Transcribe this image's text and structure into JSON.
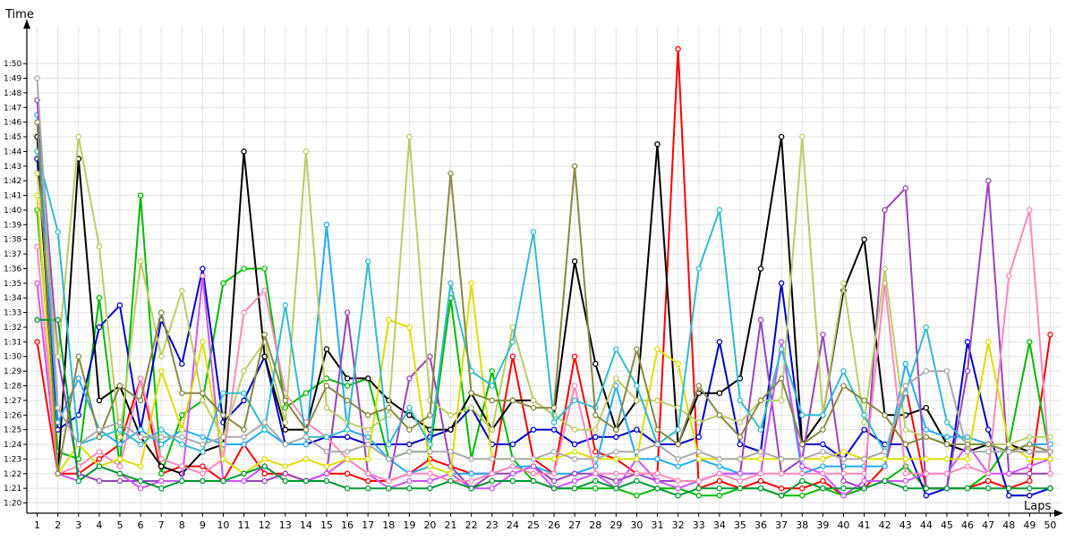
{
  "chart_data": {
    "type": "line",
    "title": "",
    "xlabel": "Laps",
    "ylabel": "Time",
    "x": [
      1,
      2,
      3,
      4,
      5,
      6,
      7,
      8,
      9,
      10,
      11,
      12,
      13,
      14,
      15,
      16,
      17,
      18,
      19,
      20,
      21,
      22,
      23,
      24,
      25,
      26,
      27,
      28,
      29,
      30,
      31,
      32,
      33,
      34,
      35,
      36,
      37,
      38,
      39,
      40,
      41,
      42,
      43,
      44,
      45,
      46,
      47,
      48,
      49,
      50
    ],
    "y_ticks": [
      "1:20",
      "1:21",
      "1:22",
      "1:23",
      "1:24",
      "1:25",
      "1:26",
      "1:27",
      "1:28",
      "1:29",
      "1:30",
      "1:31",
      "1:32",
      "1:33",
      "1:34",
      "1:35",
      "1:36",
      "1:37",
      "1:38",
      "1:39",
      "1:40",
      "1:41",
      "1:42",
      "1:43",
      "1:44",
      "1:45",
      "1:46",
      "1:47",
      "1:48",
      "1:49",
      "1:50"
    ],
    "ylim": [
      "1:19.3",
      "1:53"
    ],
    "xlim": [
      0.5,
      50.5
    ],
    "grid": true,
    "legend": "none",
    "series": [
      {
        "color": "#ff0000",
        "values": [
          "1:31.0",
          "1:22.0",
          "1:22.0",
          "1:23.0",
          "1:24.0",
          "1:28.5",
          "1:22.0",
          "1:22.5",
          "1:22.5",
          "1:21.5",
          "1:24.0",
          "1:22.0",
          "1:22.0",
          "1:21.5",
          "1:22.0",
          "1:22.0",
          "1:21.5",
          "1:21.5",
          "1:22.0",
          "1:23.0",
          "1:22.5",
          "1:22.0",
          "1:22.0",
          "1:30.0",
          "1:23.0",
          "1:22.0",
          "1:30.0",
          "1:23.5",
          "1:23.0",
          "1:22.0",
          "1:22.0",
          "1:51.0",
          "1:21.0",
          "1:21.5",
          "1:21.0",
          "1:21.5",
          "1:21.0",
          "1:21.0",
          "1:21.5",
          "1:20.5",
          "1:21.0",
          "1:22.5",
          "1:28.0",
          "1:21.0",
          "1:21.0",
          "1:21.0",
          "1:21.5",
          "1:21.0",
          "1:21.5",
          "1:31.5"
        ]
      },
      {
        "color": "#00bb00",
        "values": [
          "1:40.0",
          "1:23.5",
          "1:23.0",
          "1:34.0",
          "1:22.5",
          "1:41.0",
          "1:22.0",
          "1:26.0",
          "1:27.0",
          "1:35.0",
          "1:36.0",
          "1:36.0",
          "1:26.5",
          "1:27.5",
          "1:28.5",
          "1:28.0",
          "1:28.5",
          "1:23.0",
          "1:23.5",
          "1:23.5",
          "1:34.0",
          "1:23.0",
          "1:29.0",
          "1:23.0",
          "1:21.5",
          "1:21.0",
          "1:21.0",
          "1:21.0",
          "1:21.0",
          "1:20.5",
          "1:21.0",
          "1:21.0",
          "1:20.5",
          "1:20.5",
          "1:21.0",
          "1:21.0",
          "1:20.5",
          "1:20.5",
          "1:21.0",
          "1:20.5",
          "1:21.0",
          "1:21.5",
          "1:22.5",
          "1:21.0",
          "1:21.0",
          "1:21.0",
          "1:22.0",
          "1:24.0",
          "1:31.0",
          "1:23.0"
        ]
      },
      {
        "color": "#0000cc",
        "values": [
          "1:43.5",
          "1:25.0",
          "1:26.0",
          "1:32.0",
          "1:33.5",
          "1:25.0",
          "1:32.5",
          "1:29.5",
          "1:36.0",
          "1:25.5",
          "1:27.0",
          "1:30.0",
          "1:24.0",
          "1:24.0",
          "1:24.5",
          "1:24.5",
          "1:24.0",
          "1:24.0",
          "1:24.0",
          "1:24.5",
          "1:25.0",
          "1:26.5",
          "1:24.0",
          "1:24.0",
          "1:25.0",
          "1:25.0",
          "1:24.0",
          "1:24.5",
          "1:24.5",
          "1:25.0",
          "1:24.0",
          "1:24.0",
          "1:24.5",
          "1:31.0",
          "1:24.0",
          "1:23.5",
          "1:35.0",
          "1:24.0",
          "1:24.0",
          "1:23.0",
          "1:25.0",
          "1:24.0",
          "1:24.0",
          "1:20.5",
          "1:21.0",
          "1:31.0",
          "1:25.0",
          "1:20.5",
          "1:20.5",
          "1:21.0"
        ]
      },
      {
        "color": "#000000",
        "values": [
          "1:45.0",
          "1:22.0",
          "1:43.5",
          "1:27.0",
          "1:28.0",
          "1:24.5",
          "1:22.5",
          "1:22.0",
          "1:23.5",
          "1:24.0",
          "1:44.0",
          "1:30.0",
          "1:25.0",
          "1:25.0",
          "1:30.5",
          "1:28.5",
          "1:28.5",
          "1:27.0",
          "1:26.0",
          "1:25.0",
          "1:25.0",
          "1:27.5",
          "1:25.0",
          "1:27.0",
          "1:27.0",
          "1:26.0",
          "1:36.5",
          "1:29.5",
          "1:25.0",
          "1:27.0",
          "1:44.5",
          "1:24.0",
          "1:27.5",
          "1:27.5",
          "1:28.5",
          "1:36.0",
          "1:45.0",
          "1:24.0",
          "1:26.0",
          "1:34.5",
          "1:38.0",
          "1:26.0",
          "1:26.0",
          "1:26.5",
          "1:24.0",
          "1:23.5",
          "1:24.0",
          "1:24.0",
          "1:23.5",
          "1:23.5"
        ]
      },
      {
        "color": "#22aaff",
        "values": [
          "1:46.5",
          "1:25.5",
          "1:28.5",
          "1:25.0",
          "1:24.0",
          "1:25.0",
          "1:24.0",
          "1:25.0",
          "1:24.5",
          "1:24.0",
          "1:24.0",
          "1:25.0",
          "1:24.0",
          "1:24.0",
          "1:39.0",
          "1:25.0",
          "1:24.5",
          "1:23.0",
          "1:22.0",
          "1:22.5",
          "1:22.0",
          "1:22.0",
          "1:22.0",
          "1:22.5",
          "1:22.5",
          "1:22.0",
          "1:22.0",
          "1:22.5",
          "1:28.0",
          "1:23.0",
          "1:23.0",
          "1:22.5",
          "1:23.0",
          "1:22.5",
          "1:22.0",
          "1:22.0",
          "1:31.0",
          "1:22.0",
          "1:22.5",
          "1:22.5",
          "1:22.5",
          "1:22.5",
          "1:29.5",
          "1:25.0",
          "1:24.5",
          "1:24.5",
          "1:24.0",
          "1:23.5",
          "1:24.0",
          "1:24.0"
        ]
      },
      {
        "color": "#9944bb",
        "values": [
          "1:47.5",
          "1:30.0",
          "1:22.0",
          "1:21.5",
          "1:21.5",
          "1:21.5",
          "1:21.5",
          "1:21.5",
          "1:21.5",
          "1:21.5",
          "1:21.5",
          "1:21.5",
          "1:22.0",
          "1:21.5",
          "1:22.0",
          "1:33.0",
          "1:22.0",
          "1:21.5",
          "1:28.5",
          "1:30.0",
          "1:22.5",
          "1:21.0",
          "1:22.0",
          "1:22.0",
          "1:22.5",
          "1:21.5",
          "1:22.0",
          "1:22.0",
          "1:21.5",
          "1:22.0",
          "1:21.5",
          "1:21.5",
          "1:21.5",
          "1:22.0",
          "1:22.0",
          "1:32.5",
          "1:22.0",
          "1:23.0",
          "1:31.5",
          "1:21.5",
          "1:21.0",
          "1:40.0",
          "1:41.5",
          "1:21.0",
          "1:21.0",
          "1:29.0",
          "1:42.0",
          "1:22.0",
          "1:22.0",
          "1:22.0"
        ]
      },
      {
        "color": "#cc55ff",
        "values": [
          "1:35.0",
          "1:22.0",
          "1:21.5",
          "1:22.5",
          "1:22.0",
          "1:21.0",
          "1:21.5",
          "1:21.5",
          "1:35.5",
          "1:21.5",
          "1:21.5",
          "1:22.5",
          "1:21.5",
          "1:21.5",
          "1:22.0",
          "1:23.0",
          "1:22.0",
          "1:21.0",
          "1:21.5",
          "1:21.5",
          "1:22.0",
          "1:21.0",
          "1:21.0",
          "1:22.0",
          "1:22.5",
          "1:21.0",
          "1:21.5",
          "1:22.0",
          "1:21.0",
          "1:23.0",
          "1:21.5",
          "1:21.0",
          "1:21.5",
          "1:22.0",
          "1:22.0",
          "1:22.0",
          "1:31.0",
          "1:22.5",
          "1:22.0",
          "1:20.5",
          "1:21.5",
          "1:21.5",
          "1:21.5",
          "1:22.0",
          "1:22.0",
          "1:24.0",
          "1:22.0",
          "1:22.0",
          "1:22.5",
          "1:23.0"
        ]
      },
      {
        "color": "#ff88bb",
        "values": [
          "1:37.5",
          "1:22.0",
          "1:22.5",
          "1:23.5",
          "1:22.5",
          "1:28.5",
          "1:23.0",
          "1:22.5",
          "1:22.0",
          "1:23.0",
          "1:33.0",
          "1:34.5",
          "1:27.5",
          "1:25.5",
          "1:24.5",
          "1:23.0",
          "1:22.0",
          "1:21.5",
          "1:22.0",
          "1:22.0",
          "1:21.5",
          "1:21.5",
          "1:22.0",
          "1:22.5",
          "1:22.0",
          "1:22.0",
          "1:28.0",
          "1:22.0",
          "1:22.0",
          "1:22.0",
          "1:22.0",
          "1:21.5",
          "1:21.5",
          "1:22.0",
          "1:21.5",
          "1:22.0",
          "1:22.0",
          "1:22.0",
          "1:22.0",
          "1:22.0",
          "1:22.0",
          "1:35.0",
          "1:22.0",
          "1:22.0",
          "1:22.0",
          "1:22.5",
          "1:22.0",
          "1:35.5",
          "1:40.0",
          "1:22.0"
        ]
      },
      {
        "color": "#dddd00",
        "values": [
          "1:41.0",
          "1:22.0",
          "1:24.0",
          "1:22.5",
          "1:23.0",
          "1:22.5",
          "1:29.0",
          "1:25.0",
          "1:31.0",
          "1:23.0",
          "1:22.0",
          "1:23.0",
          "1:22.5",
          "1:23.0",
          "1:22.5",
          "1:23.0",
          "1:23.0",
          "1:32.5",
          "1:32.0",
          "1:22.5",
          "1:22.0",
          "1:35.0",
          "1:23.0",
          "1:23.0",
          "1:23.0",
          "1:23.0",
          "1:23.5",
          "1:23.0",
          "1:23.0",
          "1:23.0",
          "1:30.5",
          "1:29.5",
          "1:23.0",
          "1:23.0",
          "1:23.0",
          "1:23.0",
          "1:23.0",
          "1:23.0",
          "1:23.0",
          "1:23.5",
          "1:23.0",
          "1:23.0",
          "1:23.0",
          "1:23.0",
          "1:23.0",
          "1:23.0",
          "1:31.0",
          "1:24.0",
          "1:23.0",
          "1:23.0"
        ]
      },
      {
        "color": "#bbcc66",
        "values": [
          "1:42.5",
          "1:30.0",
          "1:45.0",
          "1:37.5",
          "1:24.5",
          "1:36.5",
          "1:30.0",
          "1:34.5",
          "1:27.0",
          "1:24.5",
          "1:29.0",
          "1:31.0",
          "1:25.5",
          "1:44.0",
          "1:26.5",
          "1:25.5",
          "1:25.0",
          "1:26.0",
          "1:45.0",
          "1:27.0",
          "1:26.0",
          "1:26.5",
          "1:25.0",
          "1:32.0",
          "1:27.0",
          "1:26.0",
          "1:25.0",
          "1:25.0",
          "1:28.5",
          "1:27.0",
          "1:27.0",
          "1:26.5",
          "1:25.5",
          "1:26.0",
          "1:25.5",
          "1:27.0",
          "1:27.0",
          "1:45.0",
          "1:26.0",
          "1:35.0",
          "1:25.5",
          "1:36.0",
          "1:25.0",
          "1:24.5",
          "1:24.0",
          "1:24.0",
          "1:24.0",
          "1:24.0",
          "1:24.5",
          "1:24.5"
        ]
      },
      {
        "color": "#33bbcc",
        "values": [
          "1:44.0",
          "1:38.5",
          "1:24.0",
          "1:24.5",
          "1:25.0",
          "1:24.0",
          "1:25.0",
          "1:24.0",
          "1:23.5",
          "1:27.5",
          "1:27.5",
          "1:25.0",
          "1:33.5",
          "1:24.5",
          "1:24.5",
          "1:25.0",
          "1:36.5",
          "1:24.0",
          "1:26.5",
          "1:24.0",
          "1:35.0",
          "1:29.0",
          "1:28.0",
          "1:31.0",
          "1:38.5",
          "1:25.5",
          "1:27.0",
          "1:26.5",
          "1:30.5",
          "1:28.0",
          "1:24.0",
          "1:25.0",
          "1:36.0",
          "1:40.0",
          "1:27.0",
          "1:25.0",
          "1:30.5",
          "1:26.0",
          "1:26.0",
          "1:29.0",
          "1:26.0",
          "1:23.5",
          "1:27.5",
          "1:32.0",
          "1:25.5",
          "1:24.0",
          "1:24.0",
          "1:23.5",
          "1:24.0",
          "1:23.5"
        ]
      },
      {
        "color": "#888844",
        "values": [
          "1:46.0",
          "1:22.0",
          "1:30.0",
          "1:24.5",
          "1:28.0",
          "1:27.0",
          "1:33.0",
          "1:27.5",
          "1:27.5",
          "1:26.0",
          "1:25.0",
          "1:31.5",
          "1:27.0",
          "1:25.0",
          "1:28.0",
          "1:27.0",
          "1:26.0",
          "1:26.5",
          "1:25.0",
          "1:26.0",
          "1:42.5",
          "1:27.5",
          "1:27.0",
          "1:27.0",
          "1:26.5",
          "1:26.5",
          "1:43.0",
          "1:26.0",
          "1:25.0",
          "1:30.5",
          "1:25.0",
          "1:24.0",
          "1:28.0",
          "1:26.0",
          "1:24.5",
          "1:27.0",
          "1:28.5",
          "1:24.0",
          "1:25.0",
          "1:28.0",
          "1:27.0",
          "1:26.0",
          "1:24.0",
          "1:24.5",
          "1:24.0",
          "1:24.0",
          "1:24.0",
          "1:23.5",
          "1:24.0",
          "1:23.5"
        ]
      },
      {
        "color": "#009933",
        "values": [
          "1:32.5",
          "1:32.5",
          "1:21.5",
          "1:22.5",
          "1:22.0",
          "1:21.5",
          "1:21.0",
          "1:21.5",
          "1:21.5",
          "1:21.5",
          "1:22.0",
          "1:22.5",
          "1:21.5",
          "1:21.5",
          "1:21.5",
          "1:21.0",
          "1:21.0",
          "1:21.0",
          "1:21.0",
          "1:21.0",
          "1:21.5",
          "1:21.0",
          "1:21.5",
          "1:21.5",
          "1:21.5",
          "1:21.0",
          "1:21.0",
          "1:21.5",
          "1:21.0",
          "1:21.5",
          "1:21.0",
          "1:20.5",
          "1:21.0",
          "1:21.0",
          "1:21.0",
          "1:21.0",
          "1:20.5",
          "1:21.5",
          "1:21.0",
          "1:21.0",
          "1:21.0",
          "1:21.5",
          "1:21.0",
          "1:21.0",
          "1:21.0",
          "1:21.0",
          "1:21.0",
          "1:21.0",
          "1:21.0",
          "1:21.0"
        ]
      },
      {
        "color": "#aaaaaa",
        "values": [
          "1:49.0",
          "1:26.5",
          "1:24.0",
          "1:25.0",
          "1:25.5",
          "1:24.5",
          "1:24.5",
          "1:24.5",
          "1:24.0",
          "1:24.5",
          "1:24.5",
          "1:25.5",
          "1:24.0",
          "1:24.5",
          "1:23.5",
          "1:23.5",
          "1:24.0",
          "1:23.0",
          "1:23.5",
          "1:23.5",
          "1:23.5",
          "1:23.0",
          "1:23.0",
          "1:23.0",
          "1:23.0",
          "1:23.5",
          "1:23.0",
          "1:23.0",
          "1:23.5",
          "1:23.5",
          "1:24.0",
          "1:23.0",
          "1:23.5",
          "1:23.0",
          "1:23.0",
          "1:23.5",
          "1:23.0",
          "1:23.0",
          "1:23.5",
          "1:23.0",
          "1:23.0",
          "1:23.5",
          "1:28.0",
          "1:29.0",
          "1:29.0",
          "1:23.5",
          "1:23.5",
          "1:23.5",
          "1:23.5",
          "1:23.5"
        ]
      }
    ]
  }
}
